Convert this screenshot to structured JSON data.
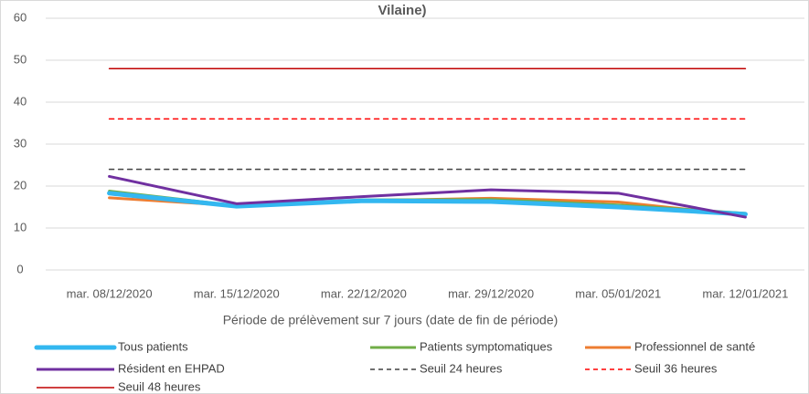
{
  "chart_data": {
    "type": "line",
    "title": "Vilaine)",
    "categories": [
      "mar. 08/12/2020",
      "mar. 15/12/2020",
      "mar. 22/12/2020",
      "mar. 29/12/2020",
      "mar. 05/01/2021",
      "mar. 12/01/2021"
    ],
    "x_label": "Période de prélèvement sur 7 jours (date de fin de période)",
    "ylim": [
      0,
      60
    ],
    "yticks": [
      0,
      10,
      20,
      30,
      40,
      50,
      60
    ],
    "grid": true,
    "series": [
      {
        "name": "Tous patients",
        "color": "#33b7f0",
        "values": [
          18.3,
          15.2,
          16.5,
          16.3,
          15.0,
          13.3
        ]
      },
      {
        "name": "Patients symptomatiques",
        "color": "#70ad47",
        "values": [
          18.8,
          15.3,
          16.7,
          16.8,
          15.5,
          13.5
        ]
      },
      {
        "name": "Professionnel de santé",
        "color": "#ed7d31",
        "values": [
          17.2,
          15.3,
          16.5,
          17.1,
          16.2,
          13.0
        ]
      },
      {
        "name": "Résident en EHPAD",
        "color": "#7030a0",
        "values": [
          22.3,
          15.8,
          17.5,
          19.1,
          18.3,
          12.6
        ]
      },
      {
        "name": "Seuil 24 heures",
        "color": "#404040",
        "dashed": true,
        "values": [
          24,
          24,
          24,
          24,
          24,
          24
        ]
      },
      {
        "name": "Seuil 36 heures",
        "color": "#ff0000",
        "dashed": true,
        "values": [
          36,
          36,
          36,
          36,
          36,
          36
        ]
      },
      {
        "name": "Seuil 48 heures",
        "color": "#c00000",
        "dashed": false,
        "values": [
          48,
          48,
          48,
          48,
          48,
          48
        ]
      }
    ]
  }
}
